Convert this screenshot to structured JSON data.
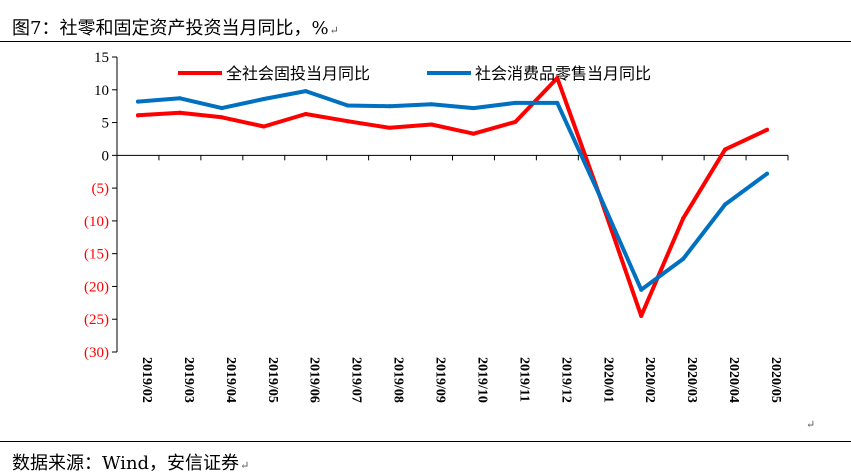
{
  "header": {
    "caption_prefix": "图7：",
    "caption_title": "社零和固定资产投资当月同比，%",
    "caption_mark": "↵"
  },
  "footer": {
    "source": "数据来源：Wind，安信证券",
    "source_mark": "↵",
    "end_mark": "↵"
  },
  "colors": {
    "series_fixed_investment": "#ff0000",
    "series_retail": "#0070c0",
    "negative_tick": "#ff0000",
    "positive_tick": "#000000"
  },
  "chart_data": {
    "type": "line",
    "title": "社零和固定资产投资当月同比，%",
    "x": [
      "2019/02",
      "2019/03",
      "2019/04",
      "2019/05",
      "2019/06",
      "2019/07",
      "2019/08",
      "2019/09",
      "2019/10",
      "2019/11",
      "2019/12",
      "2020/01",
      "2020/02",
      "2020/03",
      "2020/04",
      "2020/05"
    ],
    "ylim": [
      -30,
      15
    ],
    "yticks": [
      15,
      10,
      5,
      0,
      -5,
      -10,
      -15,
      -20,
      -25,
      -30
    ],
    "ytick_labels": [
      "15",
      "10",
      "5",
      "0",
      "(5)",
      "(10)",
      "(15)",
      "(20)",
      "(25)",
      "(30)"
    ],
    "negative_format": "parentheses",
    "grid": false,
    "legend_position": "top",
    "series": [
      {
        "name": "全社会固投当月同比",
        "color": "#ff0000",
        "values": [
          6.1,
          6.5,
          5.8,
          4.4,
          6.3,
          5.2,
          4.2,
          4.7,
          3.3,
          5.1,
          11.8,
          -6,
          -24.5,
          -9.6,
          0.9,
          3.9
        ]
      },
      {
        "name": "社会消费品零售当月同比",
        "color": "#0070c0",
        "values": [
          8.2,
          8.7,
          7.2,
          8.6,
          9.8,
          7.6,
          7.5,
          7.8,
          7.2,
          8.0,
          8.0,
          -6,
          -20.5,
          -15.8,
          -7.5,
          -2.8
        ]
      }
    ]
  }
}
